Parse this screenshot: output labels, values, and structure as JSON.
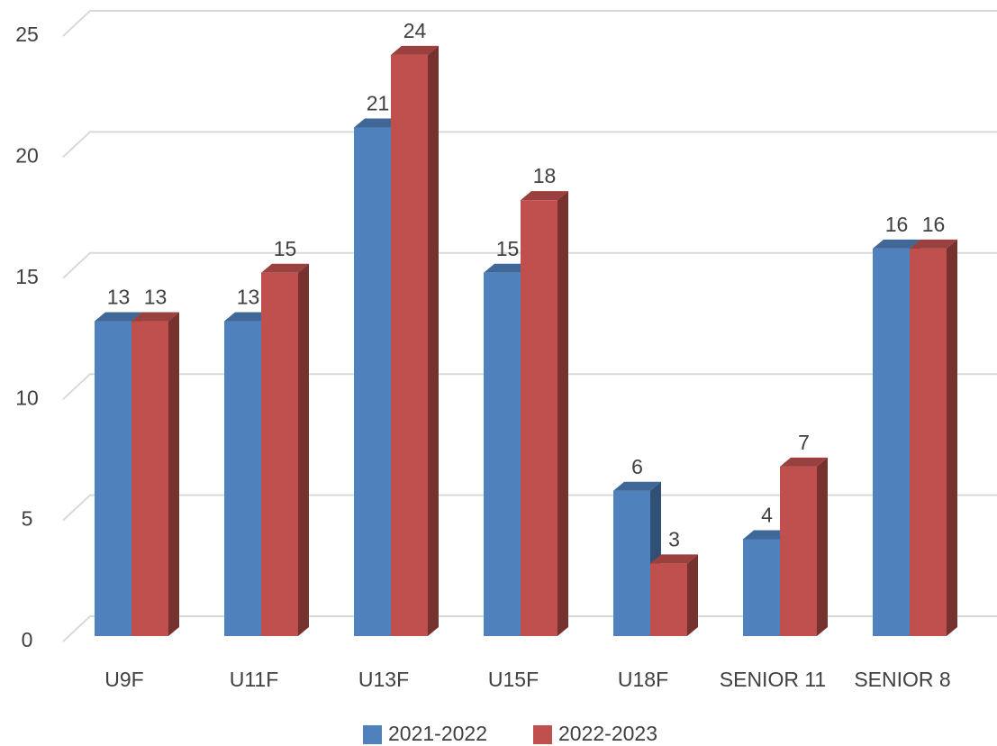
{
  "chart_data": {
    "type": "bar3d",
    "categories": [
      "U9F",
      "U11F",
      "U13F",
      "U15F",
      "U18F",
      "SENIOR 11",
      "SENIOR 8"
    ],
    "series": [
      {
        "name": "2021-2022",
        "color": "#4f81bd",
        "values": [
          13,
          13,
          21,
          15,
          6,
          4,
          16
        ]
      },
      {
        "name": "2022-2023",
        "color": "#c0504d",
        "values": [
          13,
          15,
          24,
          18,
          3,
          7,
          16
        ]
      }
    ],
    "ylim": [
      0,
      25
    ],
    "yticks": [
      0,
      5,
      10,
      15,
      20,
      25
    ],
    "grid": true,
    "legend": "bottom"
  }
}
